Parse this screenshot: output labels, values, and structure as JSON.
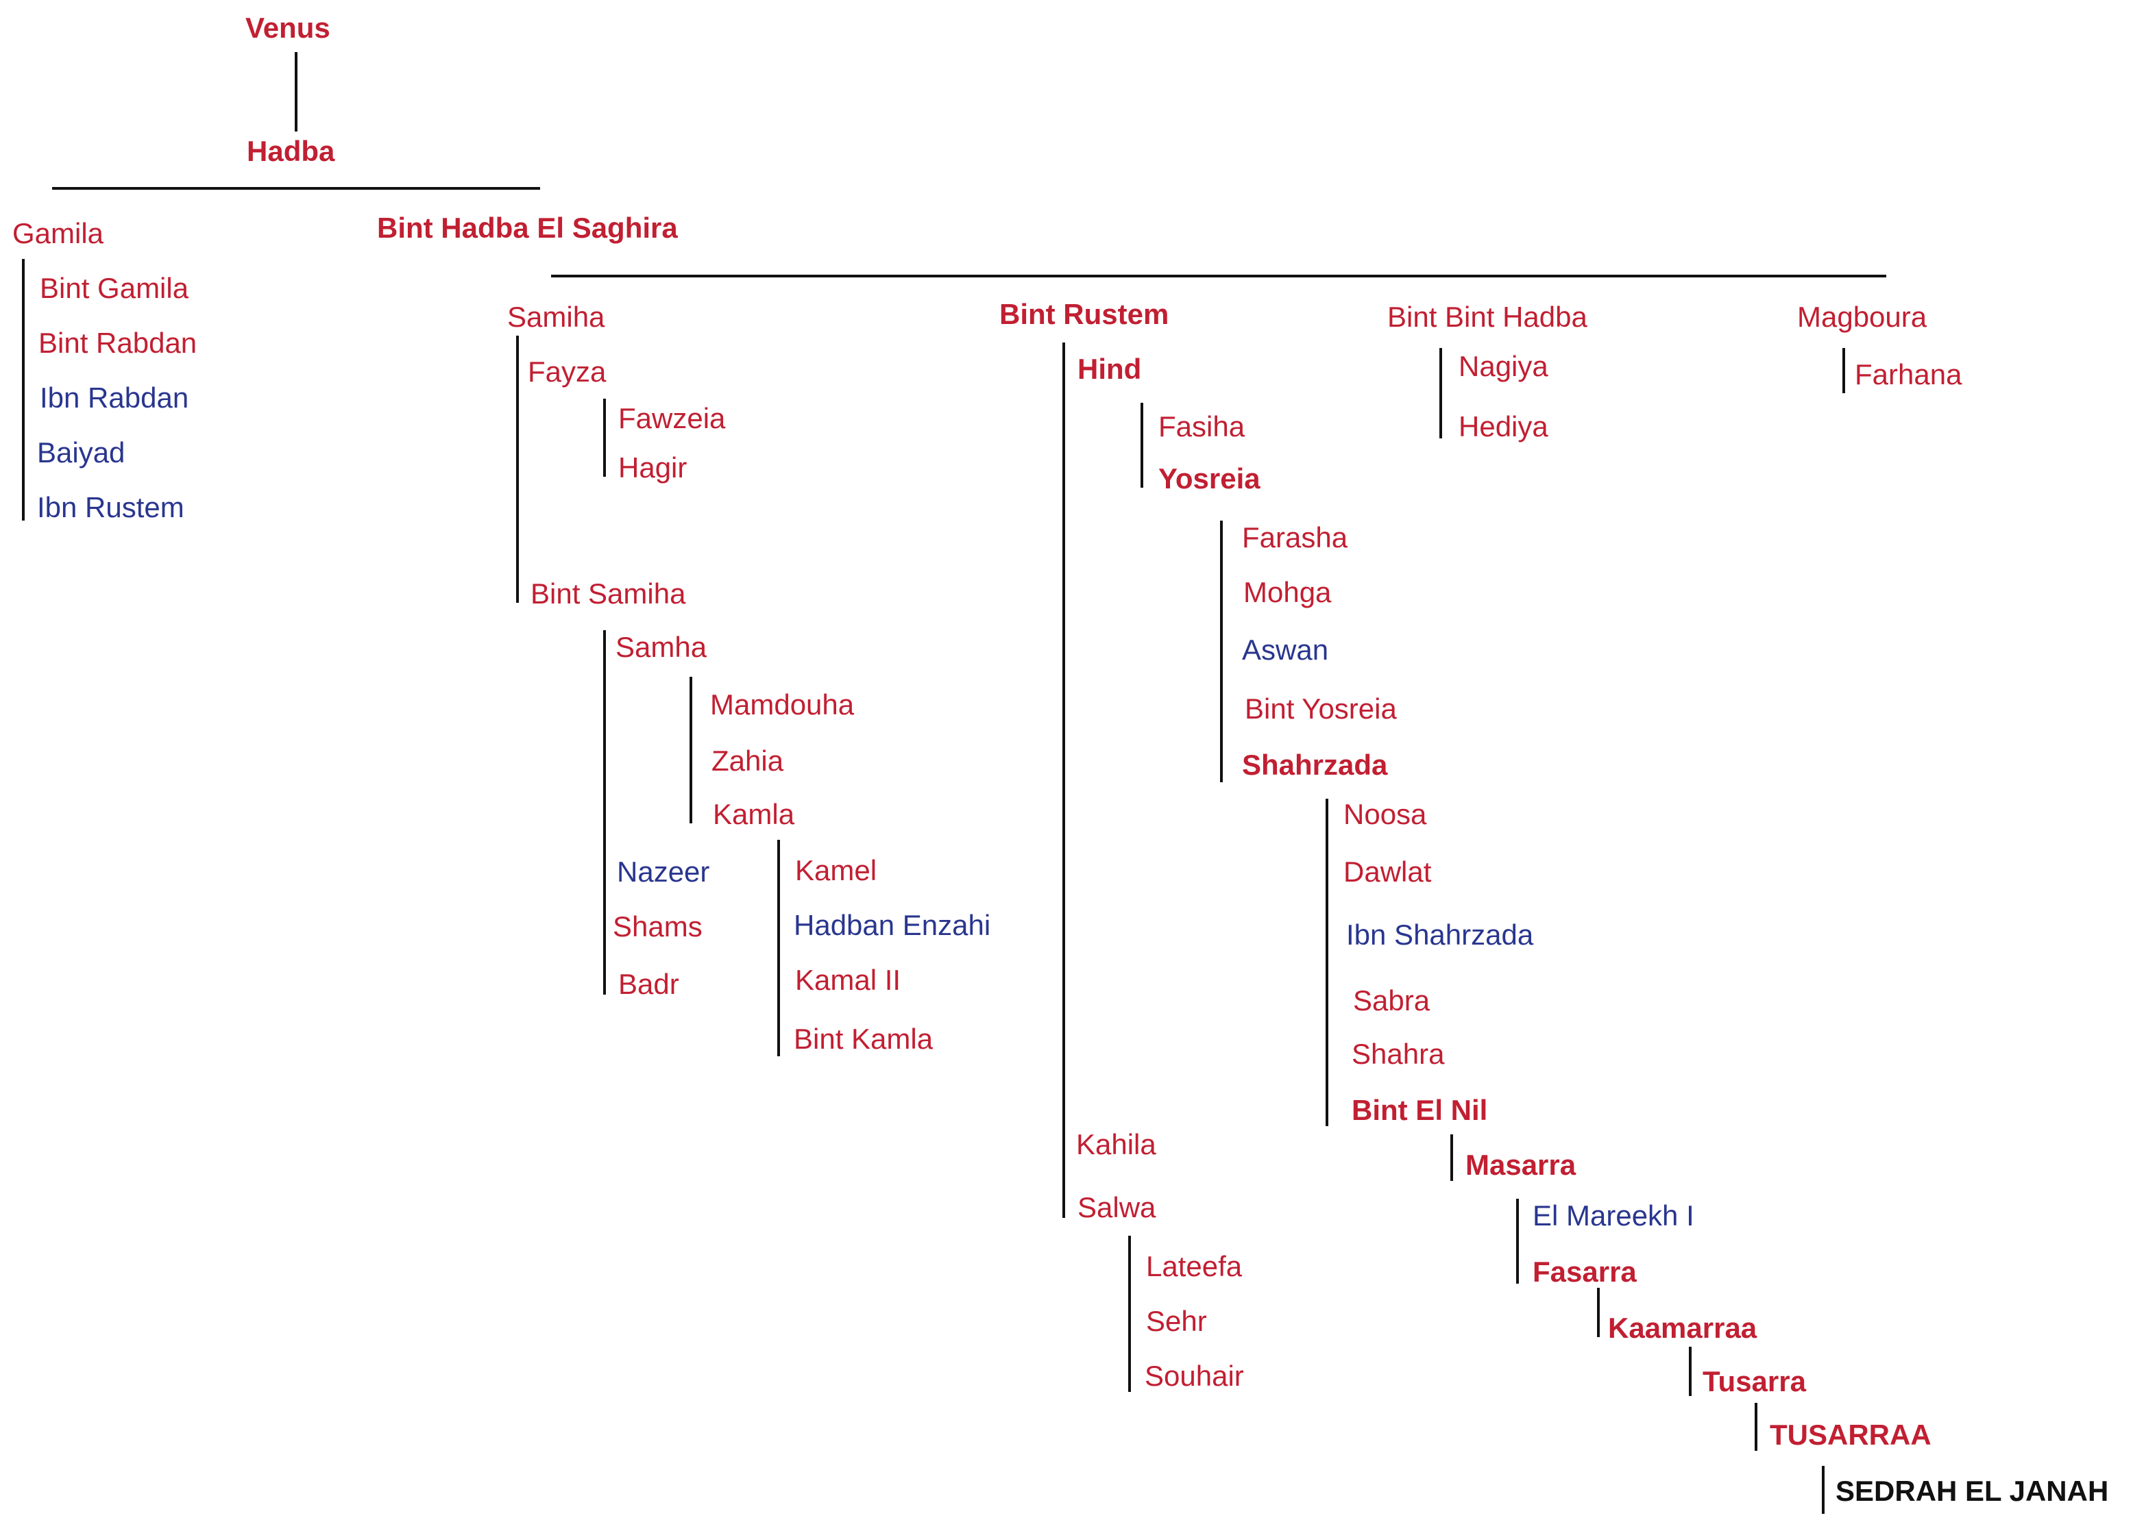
{
  "pedigree": {
    "venus": "Venus",
    "hadba": "Hadba",
    "gamila": "Gamila",
    "bint_gamila": "Bint Gamila",
    "bint_rabdan": "Bint Rabdan",
    "ibn_rabdan": "Ibn Rabdan",
    "baiyad": "Baiyad",
    "ibn_rustem": "Ibn Rustem",
    "bint_hadba_el_saghira": "Bint Hadba El Saghira",
    "samiha": "Samiha",
    "fayza": "Fayza",
    "fawzeia": "Fawzeia",
    "hagir": "Hagir",
    "bint_samiha": "Bint Samiha",
    "samha": "Samha",
    "mamdouha": "Mamdouha",
    "zahia": "Zahia",
    "kamla": "Kamla",
    "nazeer": "Nazeer",
    "shams": "Shams",
    "badr": "Badr",
    "kamel": "Kamel",
    "hadban_enzahi": "Hadban Enzahi",
    "kamal_ii": "Kamal II",
    "bint_kamla": "Bint Kamla",
    "bint_rustem": "Bint Rustem",
    "hind": "Hind",
    "fasiha": "Fasiha",
    "yosreia": "Yosreia",
    "farasha": "Farasha",
    "mohga": "Mohga",
    "aswan": "Aswan",
    "bint_yosreia": "Bint Yosreia",
    "shahrzada": "Shahrzada",
    "noosa": "Noosa",
    "dawlat": "Dawlat",
    "ibn_shahrzada": "Ibn Shahrzada",
    "sabra": "Sabra",
    "shahra": "Shahra",
    "bint_el_nil": "Bint El Nil",
    "masarra": "Masarra",
    "el_mareekh_i": "El Mareekh I",
    "fasarra": "Fasarra",
    "kaamarraa": "Kaamarraa",
    "tusarra": "Tusarra",
    "tusarraa": "TUSARRAA",
    "sedrah_el_janah": "SEDRAH EL JANAH",
    "kahila": "Kahila",
    "salwa": "Salwa",
    "lateefa": "Lateefa",
    "sehr": "Sehr",
    "souhair": "Souhair",
    "bint_bint_hadba": "Bint Bint Hadba",
    "nagiya": "Nagiya",
    "hediya": "Hediya",
    "magboura": "Magboura",
    "farhana": "Farhana"
  },
  "colors": {
    "mare": "#c11f32",
    "stallion": "#29368f",
    "featured": "#111111",
    "line": "#111111"
  }
}
